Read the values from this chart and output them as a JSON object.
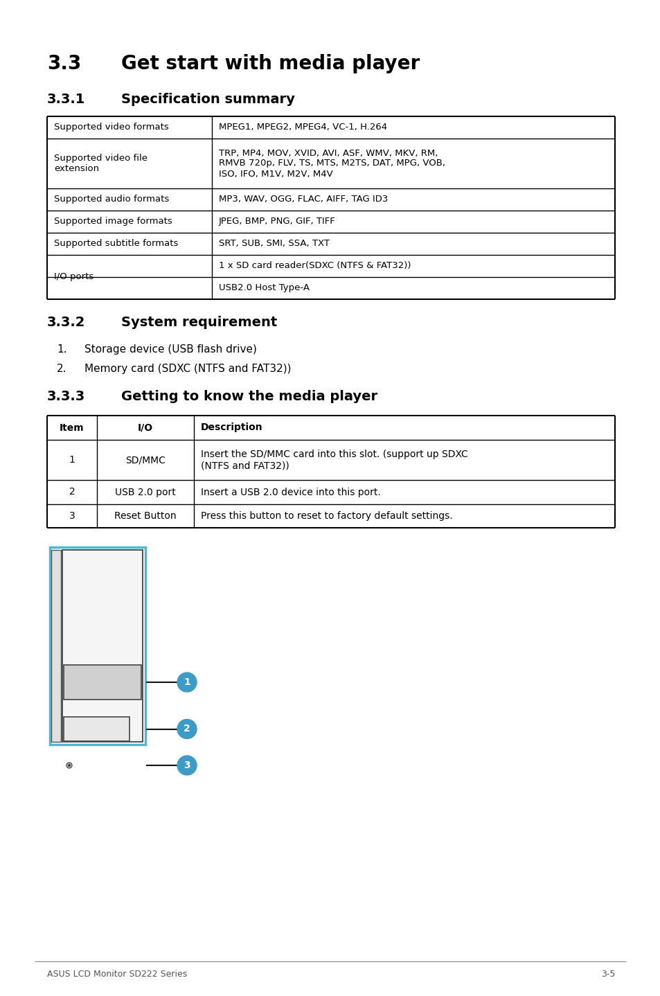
{
  "title_main_num": "3.3",
  "title_main_text": "Get start with media player",
  "title_331_num": "3.3.1",
  "title_331_text": "Specification summary",
  "title_332_num": "3.3.2",
  "title_332_text": "System requirement",
  "title_333_num": "3.3.3",
  "title_333_text": "Getting to know the media player",
  "spec_left": [
    "Supported video formats",
    "Supported video file\nextension",
    "Supported audio formats",
    "Supported image formats",
    "Supported subtitle formats",
    "I/O ports"
  ],
  "spec_right": [
    "MPEG1, MPEG2, MPEG4, VC-1, H.264",
    "TRP, MP4, MOV, XVID, AVI, ASF, WMV, MKV, RM,\nRMVB 720p, FLV, TS, MTS, M2TS, DAT, MPG, VOB,\nISO, IFO, M1V, M2V, M4V",
    "MP3, WAV, OGG, FLAC, AIFF, TAG ID3",
    "JPEG, BMP, PNG, GIF, TIFF",
    "SRT, SUB, SMI, SSA, TXT",
    "1 x SD card reader(SDXC (NTFS & FAT32))\nUSB2.0 Host Type-A"
  ],
  "sys_req": [
    "Storage device (USB flash drive)",
    "Memory card (SDXC (NTFS and FAT32))"
  ],
  "io_headers": [
    "Item",
    "I/O",
    "Description"
  ],
  "io_rows": [
    [
      "1",
      "SD/MMC",
      "Insert the SD/MMC card into this slot. (support up SDXC\n(NTFS and FAT32))"
    ],
    [
      "2",
      "USB 2.0 port",
      "Insert a USB 2.0 device into this port."
    ],
    [
      "3",
      "Reset Button",
      "Press this button to reset to factory default settings."
    ]
  ],
  "footer_left": "ASUS LCD Monitor SD222 Series",
  "footer_right": "3-5",
  "blue_color": "#4db8d4",
  "callout_color": "#3d9cc7"
}
